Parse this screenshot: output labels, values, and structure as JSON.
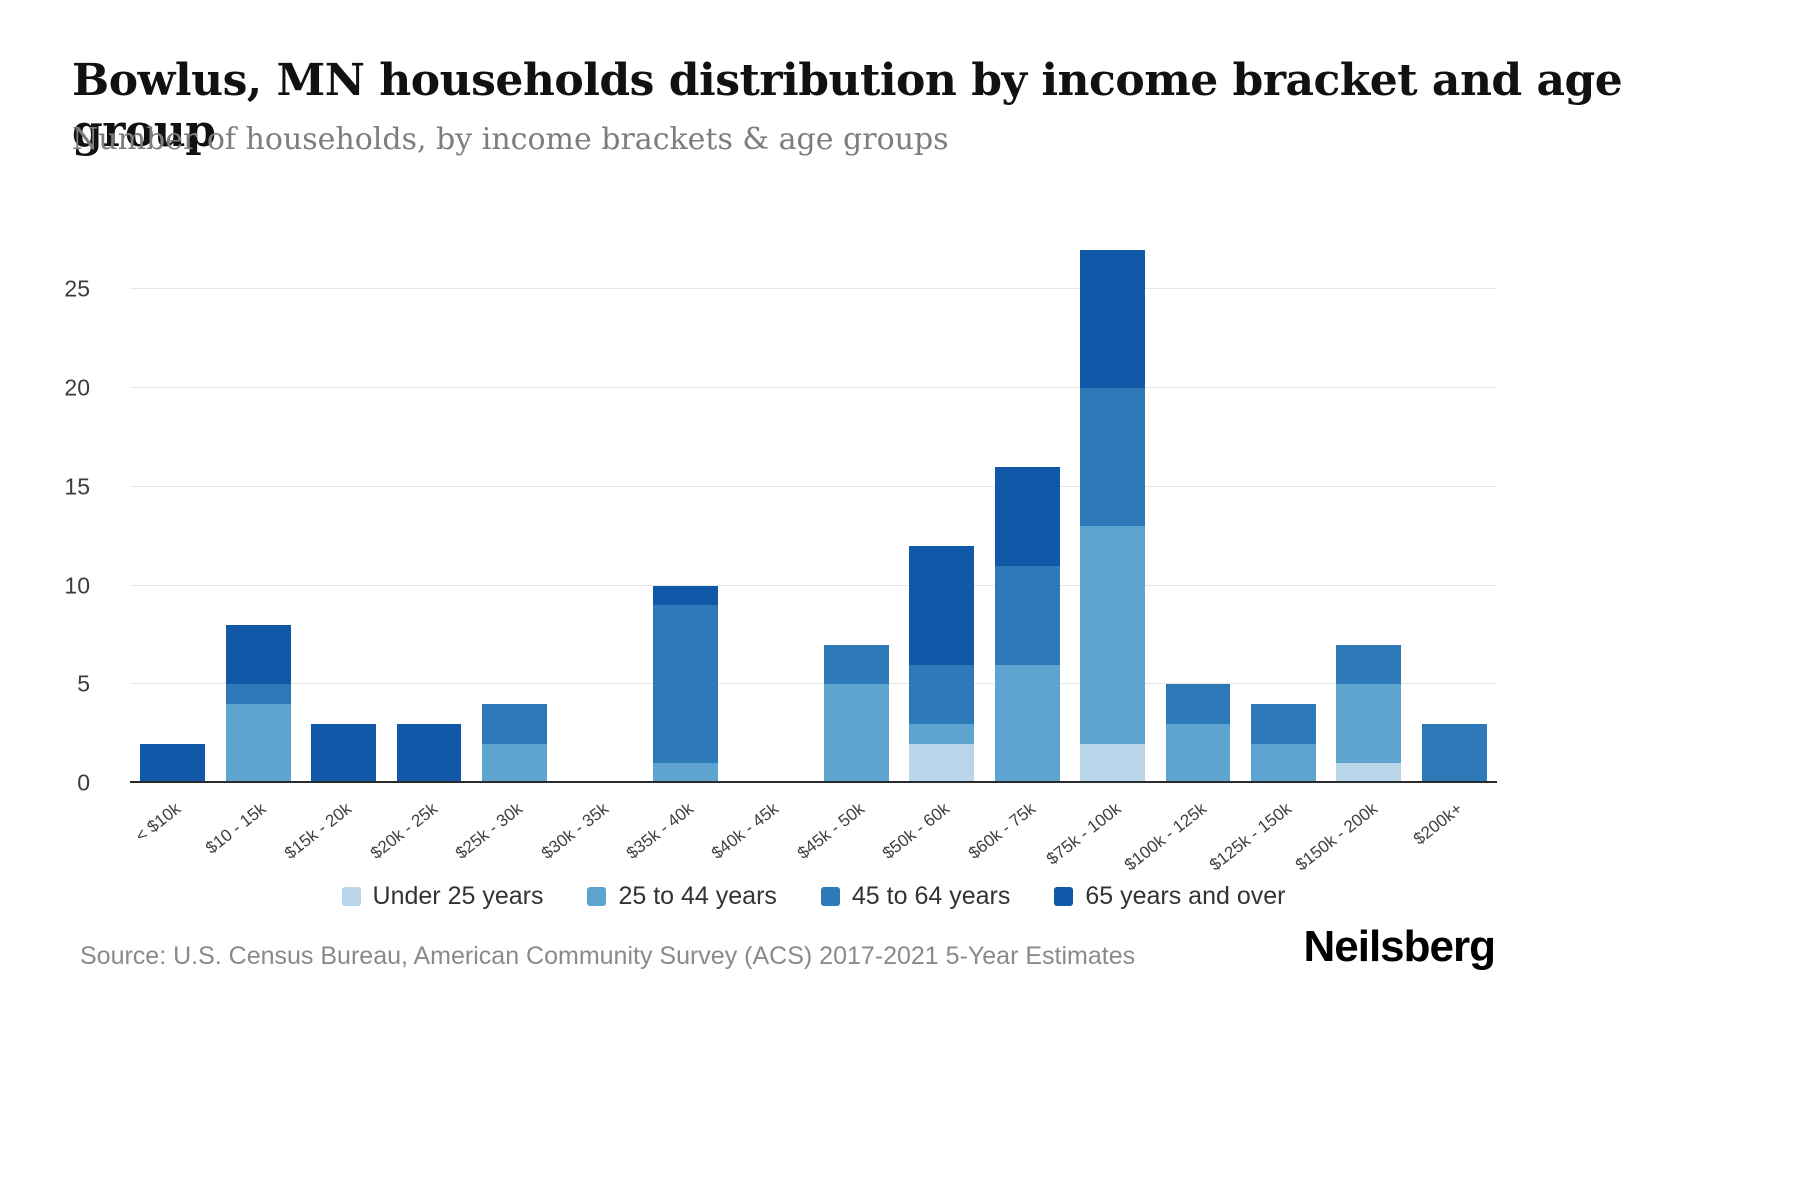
{
  "header": {
    "title": "Bowlus, MN households distribution by income bracket and age group",
    "subtitle": "Number of households, by income brackets & age groups"
  },
  "chart_data": {
    "type": "bar",
    "stacked": true,
    "title": "Bowlus, MN households distribution by income bracket and age group",
    "xlabel": "",
    "ylabel": "Number of households",
    "ylim": [
      0,
      27
    ],
    "yticks": [
      0,
      5,
      10,
      15,
      20,
      25
    ],
    "grid": true,
    "legend_position": "bottom",
    "categories": [
      "< $10k",
      "$10 - 15k",
      "$15k - 20k",
      "$20k - 25k",
      "$25k - 30k",
      "$30k - 35k",
      "$35k - 40k",
      "$40k - 45k",
      "$45k - 50k",
      "$50k - 60k",
      "$60k - 75k",
      "$75k - 100k",
      "$100k - 125k",
      "$125k - 150k",
      "$150k - 200k",
      "$200k+"
    ],
    "series": [
      {
        "name": "Under 25 years",
        "color": "#b9d5e9",
        "values": [
          0,
          0,
          0,
          0,
          0,
          0,
          0,
          0,
          0,
          2,
          0,
          2,
          0,
          0,
          1,
          0
        ]
      },
      {
        "name": "25 to 44 years",
        "color": "#5da4d1",
        "values": [
          0,
          4,
          0,
          0,
          2,
          0,
          1,
          0,
          5,
          1,
          6,
          11,
          3,
          2,
          4,
          0
        ]
      },
      {
        "name": "45 to 64 years",
        "color": "#2e79b7",
        "values": [
          0,
          1,
          0,
          0,
          2,
          0,
          8,
          0,
          2,
          3,
          5,
          7,
          2,
          2,
          2,
          3
        ]
      },
      {
        "name": "65 years and over",
        "color": "#1158a8",
        "values": [
          2,
          3,
          3,
          3,
          0,
          0,
          1,
          0,
          0,
          6,
          5,
          7,
          0,
          0,
          0,
          0
        ]
      }
    ]
  },
  "footer": {
    "source": "Source: U.S. Census Bureau, American Community Survey (ACS) 2017-2021 5-Year Estimates",
    "logo": "Neilsberg"
  }
}
